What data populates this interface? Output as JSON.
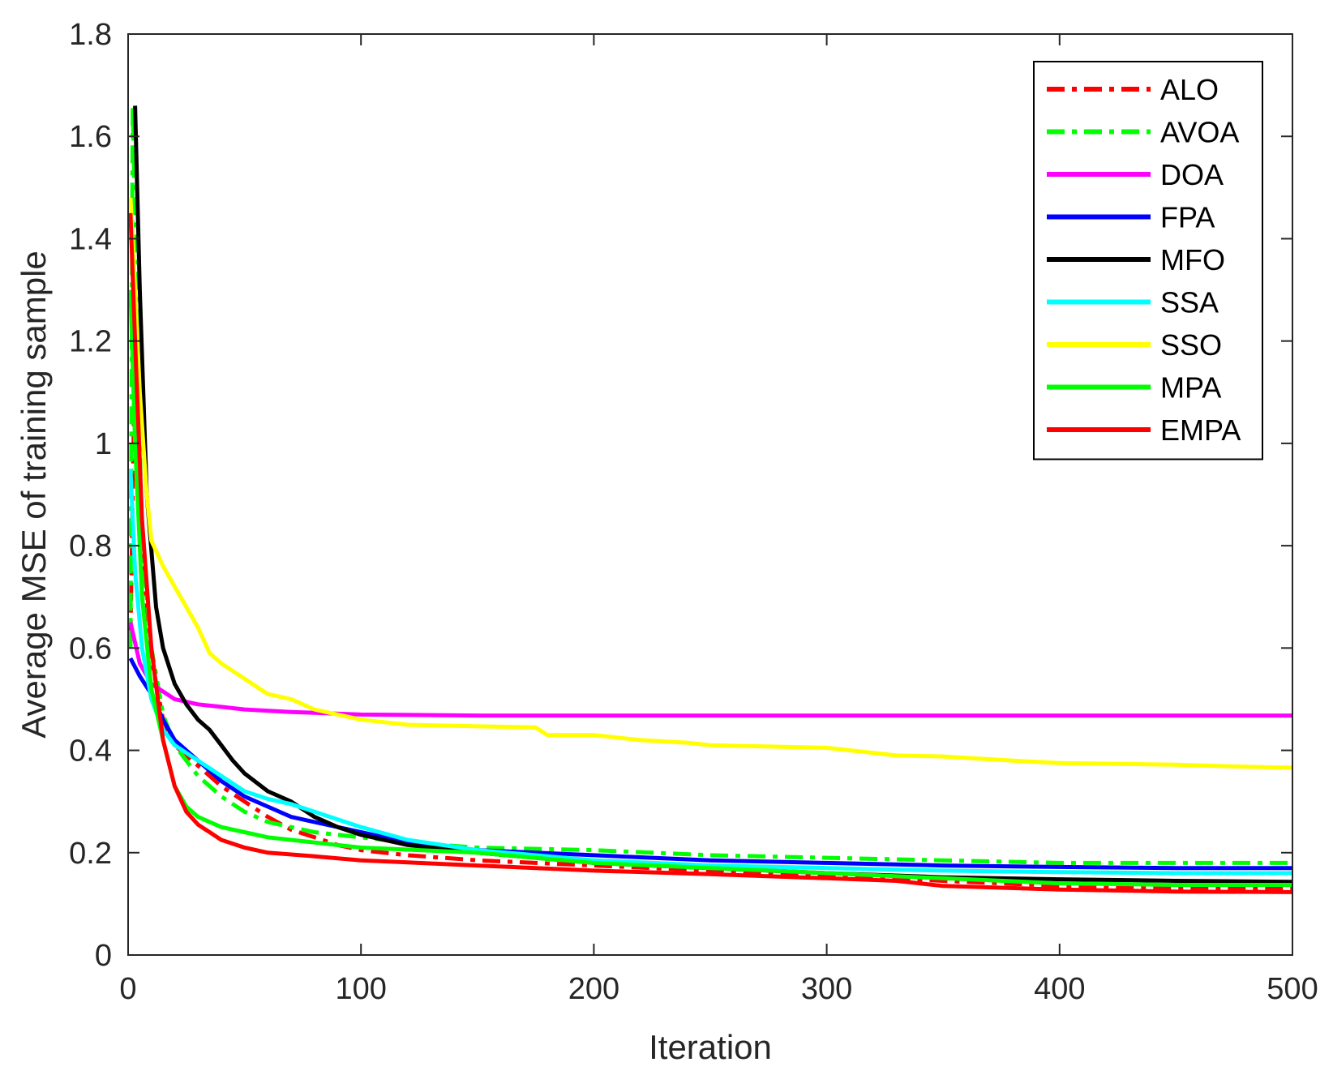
{
  "chart_data": {
    "type": "line",
    "title": "",
    "xlabel": "Iteration",
    "ylabel": "Average MSE of training sample",
    "xlim": [
      0,
      500
    ],
    "ylim": [
      0,
      1.8
    ],
    "xticks": [
      "0",
      "100",
      "200",
      "300",
      "400",
      "500"
    ],
    "yticks": [
      "0",
      "0.2",
      "0.4",
      "0.6",
      "0.8",
      "1",
      "1.2",
      "1.4",
      "1.6",
      "1.8"
    ],
    "grid": false,
    "legend_position": "top-right",
    "series": [
      {
        "name": "ALO",
        "color": "#ff0000",
        "dash": "dash-dot",
        "points": [
          [
            1,
            0.62
          ],
          [
            3,
            1.2
          ],
          [
            6,
            0.8
          ],
          [
            10,
            0.58
          ],
          [
            15,
            0.46
          ],
          [
            20,
            0.41
          ],
          [
            25,
            0.39
          ],
          [
            30,
            0.37
          ],
          [
            40,
            0.33
          ],
          [
            50,
            0.3
          ],
          [
            60,
            0.27
          ],
          [
            70,
            0.245
          ],
          [
            80,
            0.23
          ],
          [
            90,
            0.215
          ],
          [
            100,
            0.205
          ],
          [
            120,
            0.195
          ],
          [
            150,
            0.185
          ],
          [
            200,
            0.175
          ],
          [
            250,
            0.165
          ],
          [
            300,
            0.155
          ],
          [
            350,
            0.145
          ],
          [
            400,
            0.135
          ],
          [
            450,
            0.13
          ],
          [
            500,
            0.13
          ]
        ]
      },
      {
        "name": "AVOA",
        "color": "#00ff00",
        "dash": "dash-dot",
        "points": [
          [
            1,
            0.6
          ],
          [
            2,
            1.66
          ],
          [
            4,
            1.2
          ],
          [
            6,
            0.8
          ],
          [
            10,
            0.6
          ],
          [
            15,
            0.47
          ],
          [
            20,
            0.41
          ],
          [
            25,
            0.38
          ],
          [
            30,
            0.35
          ],
          [
            40,
            0.31
          ],
          [
            50,
            0.28
          ],
          [
            60,
            0.26
          ],
          [
            70,
            0.25
          ],
          [
            80,
            0.24
          ],
          [
            90,
            0.235
          ],
          [
            100,
            0.23
          ],
          [
            120,
            0.22
          ],
          [
            150,
            0.21
          ],
          [
            200,
            0.205
          ],
          [
            250,
            0.195
          ],
          [
            300,
            0.19
          ],
          [
            350,
            0.185
          ],
          [
            400,
            0.18
          ],
          [
            450,
            0.18
          ],
          [
            500,
            0.18
          ]
        ]
      },
      {
        "name": "DOA",
        "color": "#ff00ff",
        "dash": "solid",
        "points": [
          [
            1,
            0.65
          ],
          [
            5,
            0.57
          ],
          [
            10,
            0.53
          ],
          [
            15,
            0.515
          ],
          [
            20,
            0.5
          ],
          [
            30,
            0.49
          ],
          [
            40,
            0.485
          ],
          [
            50,
            0.48
          ],
          [
            70,
            0.475
          ],
          [
            100,
            0.47
          ],
          [
            150,
            0.468
          ],
          [
            200,
            0.468
          ],
          [
            300,
            0.468
          ],
          [
            400,
            0.468
          ],
          [
            500,
            0.468
          ]
        ]
      },
      {
        "name": "FPA",
        "color": "#0000ff",
        "dash": "solid",
        "points": [
          [
            1,
            0.58
          ],
          [
            5,
            0.545
          ],
          [
            10,
            0.51
          ],
          [
            15,
            0.46
          ],
          [
            20,
            0.42
          ],
          [
            25,
            0.4
          ],
          [
            30,
            0.38
          ],
          [
            40,
            0.34
          ],
          [
            50,
            0.31
          ],
          [
            60,
            0.29
          ],
          [
            70,
            0.27
          ],
          [
            80,
            0.26
          ],
          [
            90,
            0.25
          ],
          [
            100,
            0.24
          ],
          [
            120,
            0.22
          ],
          [
            150,
            0.205
          ],
          [
            200,
            0.195
          ],
          [
            250,
            0.185
          ],
          [
            300,
            0.18
          ],
          [
            350,
            0.175
          ],
          [
            400,
            0.172
          ],
          [
            450,
            0.17
          ],
          [
            500,
            0.17
          ]
        ]
      },
      {
        "name": "MFO",
        "color": "#000000",
        "dash": "solid",
        "points": [
          [
            3,
            1.66
          ],
          [
            5,
            1.3
          ],
          [
            8,
            0.9
          ],
          [
            12,
            0.68
          ],
          [
            15,
            0.6
          ],
          [
            20,
            0.53
          ],
          [
            25,
            0.49
          ],
          [
            30,
            0.46
          ],
          [
            35,
            0.44
          ],
          [
            40,
            0.41
          ],
          [
            45,
            0.38
          ],
          [
            50,
            0.355
          ],
          [
            60,
            0.32
          ],
          [
            70,
            0.3
          ],
          [
            80,
            0.27
          ],
          [
            90,
            0.25
          ],
          [
            100,
            0.235
          ],
          [
            120,
            0.215
          ],
          [
            150,
            0.2
          ],
          [
            200,
            0.18
          ],
          [
            250,
            0.17
          ],
          [
            300,
            0.16
          ],
          [
            350,
            0.152
          ],
          [
            400,
            0.148
          ],
          [
            450,
            0.145
          ],
          [
            500,
            0.143
          ]
        ]
      },
      {
        "name": "SSA",
        "color": "#00ffff",
        "dash": "solid",
        "points": [
          [
            1,
            0.95
          ],
          [
            3,
            0.75
          ],
          [
            6,
            0.6
          ],
          [
            10,
            0.5
          ],
          [
            15,
            0.44
          ],
          [
            20,
            0.41
          ],
          [
            30,
            0.38
          ],
          [
            40,
            0.35
          ],
          [
            50,
            0.32
          ],
          [
            60,
            0.305
          ],
          [
            70,
            0.295
          ],
          [
            80,
            0.28
          ],
          [
            90,
            0.265
          ],
          [
            100,
            0.25
          ],
          [
            120,
            0.225
          ],
          [
            150,
            0.205
          ],
          [
            200,
            0.185
          ],
          [
            250,
            0.175
          ],
          [
            300,
            0.17
          ],
          [
            350,
            0.165
          ],
          [
            400,
            0.162
          ],
          [
            450,
            0.16
          ],
          [
            500,
            0.16
          ]
        ]
      },
      {
        "name": "SSO",
        "color": "#ffff00",
        "dash": "solid",
        "points": [
          [
            1,
            1.48
          ],
          [
            3,
            1.3
          ],
          [
            5,
            1.1
          ],
          [
            8,
            0.9
          ],
          [
            10,
            0.81
          ],
          [
            15,
            0.76
          ],
          [
            20,
            0.72
          ],
          [
            25,
            0.68
          ],
          [
            30,
            0.64
          ],
          [
            35,
            0.59
          ],
          [
            40,
            0.57
          ],
          [
            50,
            0.54
          ],
          [
            60,
            0.51
          ],
          [
            70,
            0.5
          ],
          [
            80,
            0.48
          ],
          [
            90,
            0.47
          ],
          [
            100,
            0.46
          ],
          [
            110,
            0.455
          ],
          [
            120,
            0.45
          ],
          [
            150,
            0.447
          ],
          [
            175,
            0.445
          ],
          [
            180,
            0.43
          ],
          [
            200,
            0.43
          ],
          [
            220,
            0.42
          ],
          [
            240,
            0.415
          ],
          [
            250,
            0.41
          ],
          [
            300,
            0.405
          ],
          [
            330,
            0.39
          ],
          [
            350,
            0.388
          ],
          [
            380,
            0.38
          ],
          [
            400,
            0.375
          ],
          [
            450,
            0.372
          ],
          [
            480,
            0.368
          ],
          [
            500,
            0.366
          ]
        ]
      },
      {
        "name": "MPA",
        "color": "#00ff00",
        "dash": "solid",
        "points": [
          [
            1,
            1.3
          ],
          [
            3,
            1.0
          ],
          [
            6,
            0.7
          ],
          [
            10,
            0.52
          ],
          [
            15,
            0.42
          ],
          [
            20,
            0.33
          ],
          [
            25,
            0.29
          ],
          [
            30,
            0.27
          ],
          [
            40,
            0.25
          ],
          [
            50,
            0.24
          ],
          [
            60,
            0.23
          ],
          [
            80,
            0.22
          ],
          [
            100,
            0.21
          ],
          [
            150,
            0.2
          ],
          [
            200,
            0.18
          ],
          [
            250,
            0.17
          ],
          [
            300,
            0.16
          ],
          [
            350,
            0.15
          ],
          [
            400,
            0.14
          ],
          [
            450,
            0.137
          ],
          [
            500,
            0.137
          ]
        ]
      },
      {
        "name": "EMPA",
        "color": "#ff0000",
        "dash": "solid",
        "points": [
          [
            1,
            1.45
          ],
          [
            3,
            1.2
          ],
          [
            6,
            0.85
          ],
          [
            10,
            0.6
          ],
          [
            15,
            0.42
          ],
          [
            20,
            0.33
          ],
          [
            25,
            0.28
          ],
          [
            30,
            0.255
          ],
          [
            40,
            0.225
          ],
          [
            50,
            0.21
          ],
          [
            60,
            0.2
          ],
          [
            80,
            0.193
          ],
          [
            100,
            0.185
          ],
          [
            150,
            0.175
          ],
          [
            200,
            0.165
          ],
          [
            250,
            0.158
          ],
          [
            300,
            0.15
          ],
          [
            330,
            0.145
          ],
          [
            350,
            0.135
          ],
          [
            400,
            0.128
          ],
          [
            450,
            0.124
          ],
          [
            500,
            0.123
          ]
        ]
      }
    ]
  }
}
